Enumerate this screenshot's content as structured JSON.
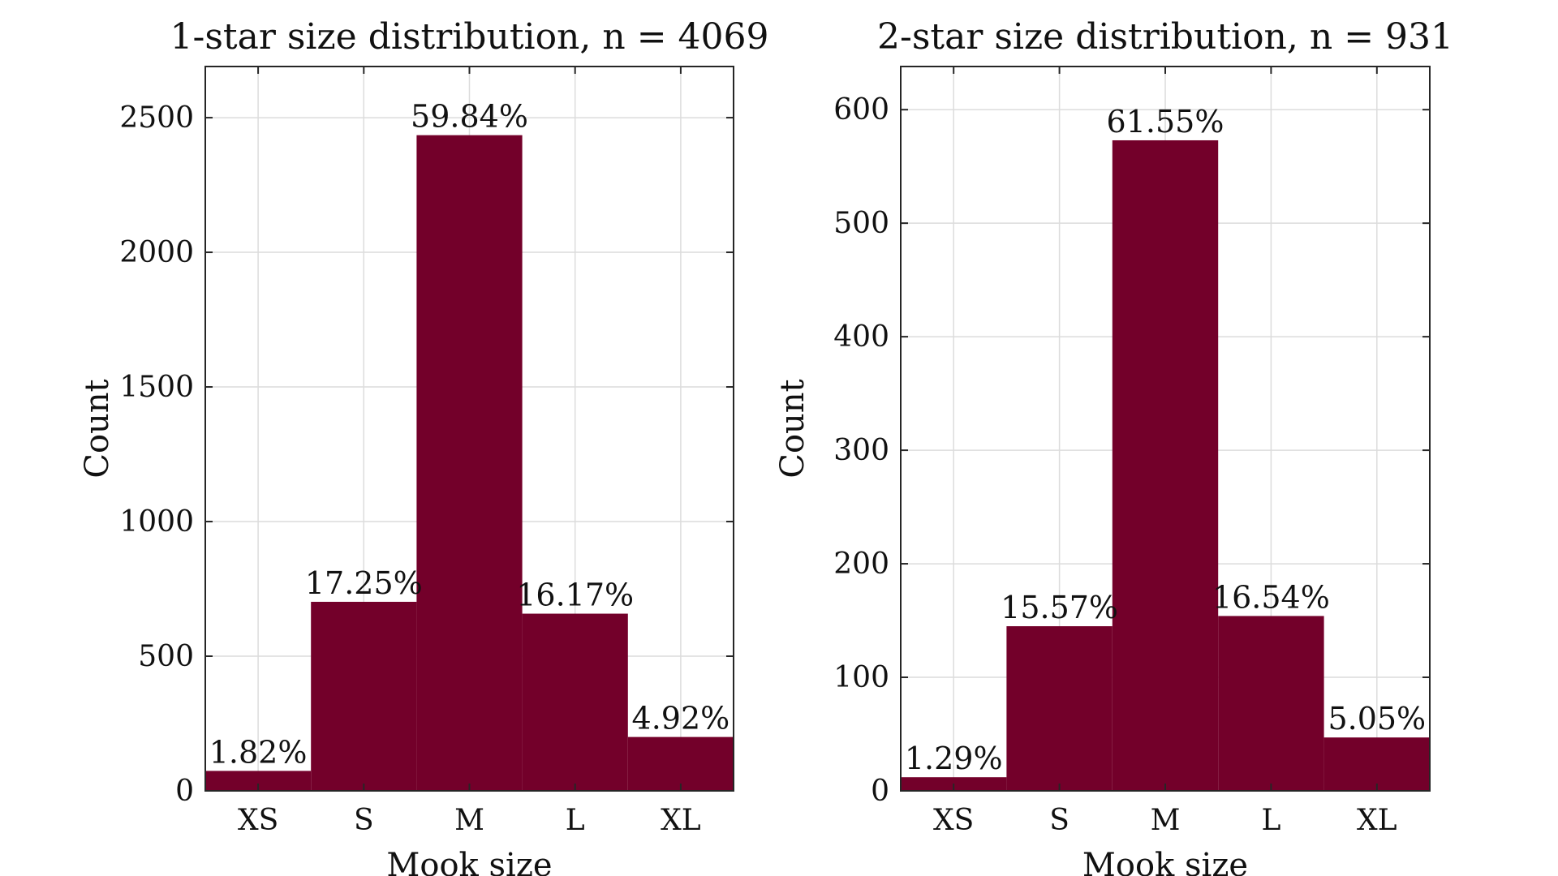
{
  "chart_data": [
    {
      "type": "bar",
      "title": "1-star size distribution, n = 4069",
      "xlabel": "Mook size",
      "ylabel": "Count",
      "categories": [
        "XS",
        "S",
        "M",
        "L",
        "XL"
      ],
      "values": [
        74,
        702,
        2435,
        658,
        200
      ],
      "labels": [
        "1.82%",
        "17.25%",
        "59.84%",
        "16.17%",
        "4.92%"
      ],
      "ylim": [
        0,
        2690
      ],
      "yticks": [
        0,
        500,
        1000,
        1500,
        2000,
        2500
      ],
      "bar_color": "#73002a",
      "grid": true
    },
    {
      "type": "bar",
      "title": "2-star size distribution, n = 931",
      "xlabel": "Mook size",
      "ylabel": "Count",
      "categories": [
        "XS",
        "S",
        "M",
        "L",
        "XL"
      ],
      "values": [
        12,
        145,
        573,
        154,
        47
      ],
      "labels": [
        "1.29%",
        "15.57%",
        "61.55%",
        "16.54%",
        "5.05%"
      ],
      "ylim": [
        0,
        638
      ],
      "yticks": [
        0,
        100,
        200,
        300,
        400,
        500,
        600
      ],
      "bar_color": "#73002a",
      "grid": true
    }
  ]
}
